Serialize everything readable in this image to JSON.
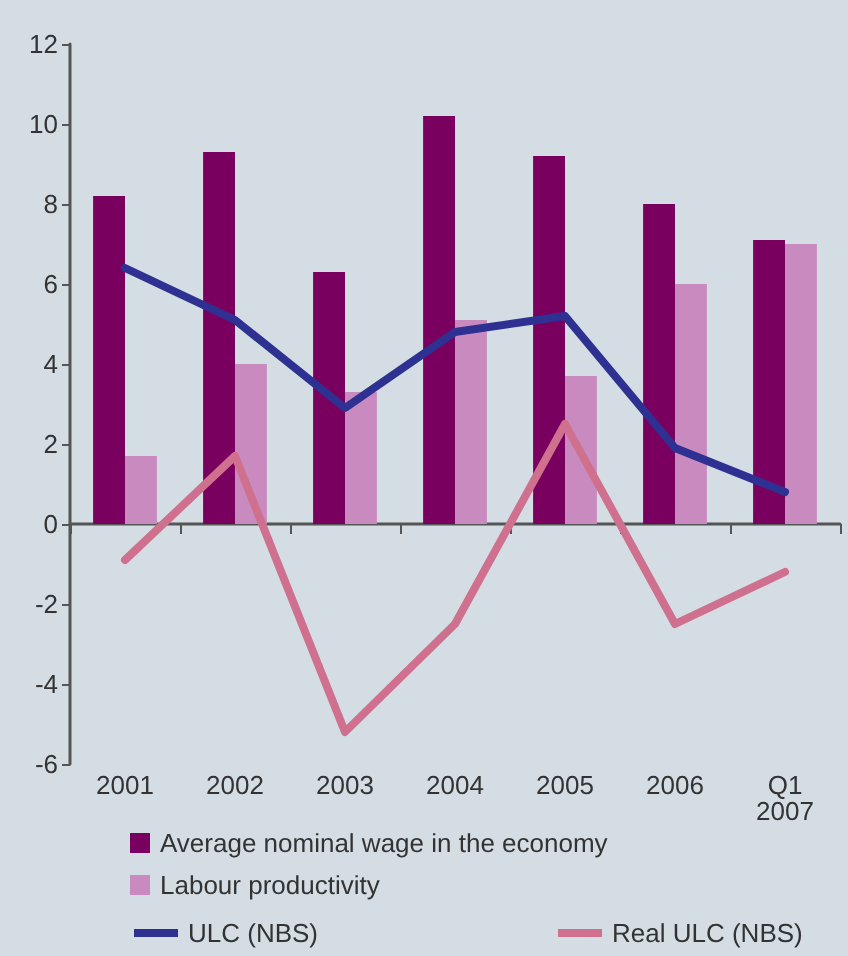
{
  "chart_data": {
    "type": "bar",
    "categories": [
      "2001",
      "2002",
      "2003",
      "2004",
      "2005",
      "2006",
      "Q1\n2007"
    ],
    "series": [
      {
        "name": "Average nominal wage in the economy",
        "color": "#7a0060",
        "values": [
          8.2,
          9.3,
          6.3,
          10.2,
          9.2,
          8.0,
          7.1
        ]
      },
      {
        "name": "Labour productivity",
        "color": "#c98bbf",
        "values": [
          1.7,
          4.0,
          3.3,
          5.1,
          3.7,
          6.0,
          7.0
        ]
      },
      {
        "name": "ULC (NBS)",
        "type": "line",
        "color": "#2e3192",
        "values": [
          6.4,
          5.1,
          2.9,
          4.8,
          5.2,
          1.9,
          0.8
        ]
      },
      {
        "name": "Real ULC (NBS)",
        "type": "line",
        "color": "#d0708f",
        "values": [
          -0.9,
          1.7,
          -5.2,
          -2.5,
          2.5,
          -2.5,
          -1.2
        ]
      }
    ],
    "ylim": [
      -6,
      12
    ],
    "yticks": [
      -6,
      -4,
      -2,
      0,
      2,
      4,
      6,
      8,
      10,
      12
    ],
    "legend": "bottom",
    "marker": "none",
    "line_style": "solid"
  }
}
